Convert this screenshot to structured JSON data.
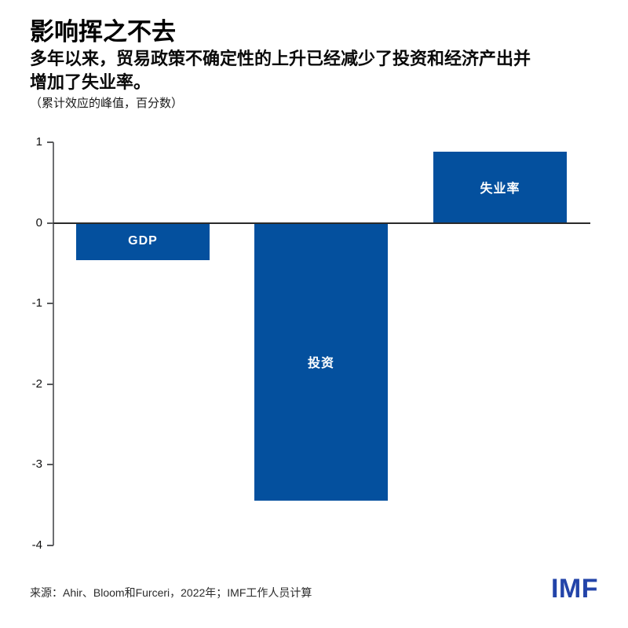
{
  "header": {
    "title": "影响挥之不去",
    "subtitle_lines": [
      "多年以来，贸易政策不确定性的上升已经减少了投资和经济产出并",
      "增加了失业率。"
    ],
    "unit_note": "（累计效应的峰值，百分数）"
  },
  "chart_data": {
    "type": "bar",
    "categories": [
      "GDP",
      "投资",
      "失业率"
    ],
    "values": [
      -0.46,
      -3.44,
      0.88
    ],
    "title": "影响挥之不去",
    "subtitle": "多年以来，贸易政策不确定性的上升已经减少了投资和经济产出并增加了失业率。",
    "unit_note": "（累计效应的峰值，百分数）",
    "xlabel": "",
    "ylabel": "",
    "ylim": [
      -4,
      1
    ],
    "yticks": [
      1,
      0,
      -1,
      -2,
      -3,
      -4
    ],
    "grid": false,
    "zero_line": true,
    "legend": "none",
    "bar_labels_position": "inside-center",
    "bar_color": "#04509e",
    "bar_label_color": "#ffffff"
  },
  "footer": {
    "source": "来源：Ahir、Bloom和Furceri，2022年；IMF工作人员计算",
    "logo_text": "IMF"
  },
  "colors": {
    "bar_blue": "#04509e",
    "logo_blue": "#2344a9",
    "axis_gray": "#6d6e71",
    "zero_line_dark": "#2a2a2a",
    "text_black": "#000000"
  }
}
